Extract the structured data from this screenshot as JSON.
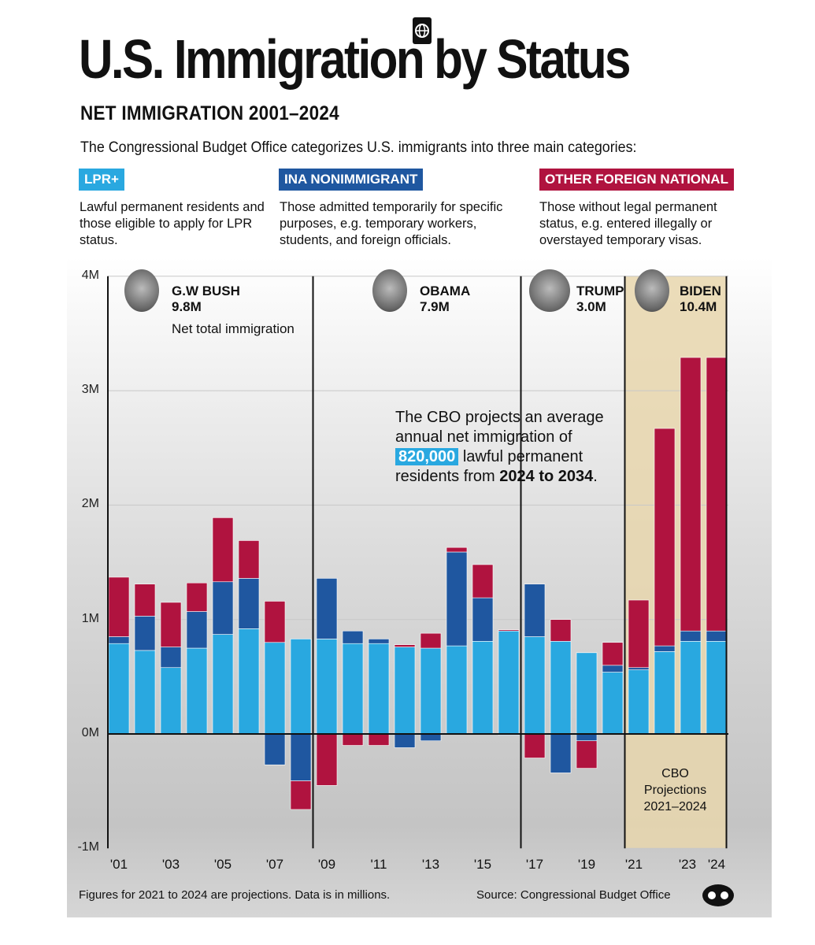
{
  "header": {
    "title": "U.S. Immigration by Status",
    "subtitle": "NET IMMIGRATION 2001–2024",
    "intro": "The Congressional Budget Office categorizes U.S. immigrants into three main categories:",
    "title_icon": "passport-globe-icon"
  },
  "categories": [
    {
      "label": "LPR+",
      "color": "#29a8e0",
      "description": "Lawful permanent residents and those eligible to apply for LPR status."
    },
    {
      "label": "INA NONIMMIGRANT",
      "color": "#1f57a0",
      "description": "Those admitted temporarily for specific purposes, e.g. temporary workers, students, and foreign officials."
    },
    {
      "label": "OTHER FOREIGN NATIONAL",
      "color": "#b0133f",
      "description": "Those without legal permanent status, e.g. entered illegally or overstayed temporary visas."
    }
  ],
  "presidents": [
    {
      "name": "G.W BUSH",
      "total": "9.8M",
      "caption": "Net total immigration"
    },
    {
      "name": "OBAMA",
      "total": "7.9M"
    },
    {
      "name": "TRUMP",
      "total": "3.0M"
    },
    {
      "name": "BIDEN",
      "total": "10.4M"
    }
  ],
  "annotation": {
    "pre": "The CBO projects an average annual net immigration of ",
    "highlight": "820,000",
    "mid": " lawful permanent residents from ",
    "bold": "2024 to 2034",
    "post": "."
  },
  "projection_label": [
    "CBO",
    "Projections",
    "2021–2024"
  ],
  "footer": {
    "note": "Figures for 2021 to 2024 are projections. Data is in millions.",
    "source": "Source: Congressional Budget Office",
    "logo": "visual-capitalist-logo"
  },
  "chart_data": {
    "type": "bar",
    "stacked": true,
    "ylim": [
      -1,
      4
    ],
    "yticks": [
      "4M",
      "3M",
      "2M",
      "1M",
      "0M",
      "-1M"
    ],
    "ytick_values": [
      4,
      3,
      2,
      1,
      0,
      -1
    ],
    "xtick_labels": {
      "2001": "'01",
      "2003": "'03",
      "2005": "'05",
      "2007": "'07",
      "2009": "'09",
      "2011": "'11",
      "2013": "'13",
      "2015": "'15",
      "2017": "'17",
      "2019": "'19",
      "2021": "'21",
      "2023": "'23",
      "2024": "'24"
    },
    "grid": true,
    "categories": [
      2001,
      2002,
      2003,
      2004,
      2005,
      2006,
      2007,
      2008,
      2009,
      2010,
      2011,
      2012,
      2013,
      2014,
      2015,
      2016,
      2017,
      2018,
      2019,
      2020,
      2021,
      2022,
      2023,
      2024
    ],
    "series": [
      {
        "name": "LPR+",
        "color": "#29a8e0",
        "values": [
          0.79,
          0.73,
          0.58,
          0.75,
          0.87,
          0.92,
          0.8,
          0.83,
          0.83,
          0.79,
          0.79,
          0.76,
          0.75,
          0.77,
          0.81,
          0.9,
          0.85,
          0.81,
          0.71,
          0.54,
          0.56,
          0.72,
          0.81,
          0.81
        ]
      },
      {
        "name": "INA NONIMMIGRANT",
        "color": "#1f57a0",
        "values": [
          0.06,
          0.3,
          0.18,
          0.32,
          0.46,
          0.44,
          -0.27,
          -0.41,
          0.53,
          0.11,
          0.04,
          -0.12,
          -0.06,
          0.82,
          0.38,
          -0.01,
          0.46,
          -0.34,
          -0.06,
          0.06,
          0.02,
          0.05,
          0.09,
          0.09
        ]
      },
      {
        "name": "OTHER FOREIGN NATIONAL",
        "color": "#b0133f",
        "values": [
          0.52,
          0.28,
          0.39,
          0.25,
          0.56,
          0.33,
          0.36,
          -0.25,
          -0.45,
          -0.1,
          -0.1,
          0.02,
          0.13,
          0.04,
          0.29,
          0.01,
          -0.21,
          0.19,
          -0.24,
          0.2,
          0.59,
          1.9,
          2.39,
          2.39
        ]
      }
    ],
    "term_dividers_after": [
      2008,
      2016,
      2020
    ],
    "projection_range": [
      2021,
      2024
    ],
    "projection_color": "#e8d6ad"
  }
}
